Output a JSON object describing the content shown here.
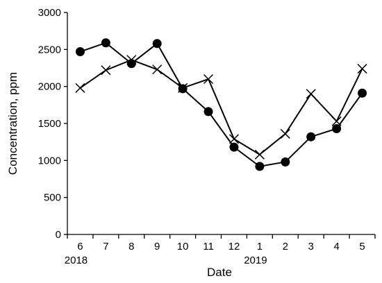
{
  "chart_data": {
    "type": "line",
    "categories": [
      "6",
      "7",
      "8",
      "9",
      "10",
      "11",
      "12",
      "1",
      "2",
      "3",
      "4",
      "5"
    ],
    "year_labels": [
      {
        "category": "6",
        "label": "2018"
      },
      {
        "category": "1",
        "label": "2019"
      }
    ],
    "series": [
      {
        "marker": "circle",
        "values": [
          2470,
          2590,
          2310,
          2580,
          1970,
          1660,
          1180,
          920,
          980,
          1320,
          1430,
          1910
        ]
      },
      {
        "marker": "x",
        "values": [
          1980,
          2220,
          2360,
          2230,
          1980,
          2100,
          1290,
          1080,
          1360,
          1900,
          1530,
          2240
        ]
      }
    ],
    "xlabel": "Date",
    "ylabel": "Concentration, ppm",
    "ylim": [
      0,
      3000
    ],
    "yticks": [
      0,
      500,
      1000,
      1500,
      2000,
      2500,
      3000
    ],
    "grid": false,
    "legend": "none"
  }
}
